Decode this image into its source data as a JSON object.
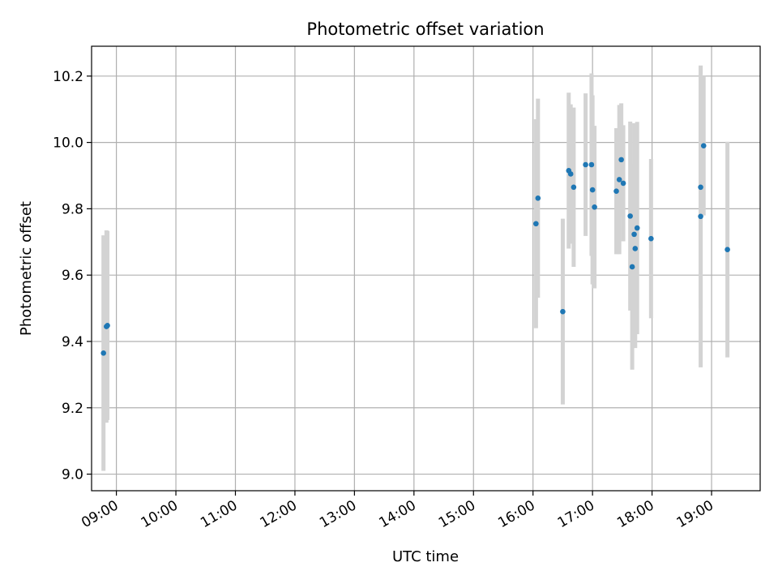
{
  "chart_data": {
    "type": "scatter",
    "title": "Photometric offset variation",
    "xlabel": "UTC time",
    "ylabel": "Photometric offset",
    "x_is_time": true,
    "xlim": [
      "08:35",
      "19:49"
    ],
    "ylim": [
      8.95,
      10.29
    ],
    "x_ticks": [
      "09:00",
      "10:00",
      "11:00",
      "12:00",
      "13:00",
      "14:00",
      "15:00",
      "16:00",
      "17:00",
      "18:00",
      "19:00"
    ],
    "y_ticks": [
      9.0,
      9.2,
      9.4,
      9.6,
      9.8,
      10.0,
      10.2
    ],
    "y_tick_labels": [
      "9.0",
      "9.2",
      "9.4",
      "9.6",
      "9.8",
      "10.0",
      "10.2"
    ],
    "grid": true,
    "colors": {
      "points": "#1f77b4",
      "error_bars": "#d3d3d3",
      "grid": "#b0b0b0"
    },
    "series": [
      {
        "points": [
          {
            "x": "08:47",
            "y": 9.365,
            "err": 0.355
          },
          {
            "x": "08:50",
            "y": 9.445,
            "err": 0.29
          },
          {
            "x": "08:51",
            "y": 9.448,
            "err": 0.285
          },
          {
            "x": "16:03",
            "y": 9.755,
            "err": 0.315
          },
          {
            "x": "16:05",
            "y": 9.832,
            "err": 0.3
          },
          {
            "x": "16:30",
            "y": 9.49,
            "err": 0.28
          },
          {
            "x": "16:36",
            "y": 9.915,
            "err": 0.235
          },
          {
            "x": "16:38",
            "y": 9.905,
            "err": 0.21
          },
          {
            "x": "16:41",
            "y": 9.865,
            "err": 0.24
          },
          {
            "x": "16:53",
            "y": 9.933,
            "err": 0.215
          },
          {
            "x": "16:59",
            "y": 9.933,
            "err": 0.275
          },
          {
            "x": "17:00",
            "y": 9.857,
            "err": 0.285
          },
          {
            "x": "17:02",
            "y": 9.805,
            "err": 0.245
          },
          {
            "x": "17:24",
            "y": 9.853,
            "err": 0.19
          },
          {
            "x": "17:27",
            "y": 9.888,
            "err": 0.225
          },
          {
            "x": "17:29",
            "y": 9.948,
            "err": 0.17
          },
          {
            "x": "17:31",
            "y": 9.877,
            "err": 0.175
          },
          {
            "x": "17:38",
            "y": 9.778,
            "err": 0.285
          },
          {
            "x": "17:40",
            "y": 9.625,
            "err": 0.31
          },
          {
            "x": "17:42",
            "y": 9.723,
            "err": 0.335
          },
          {
            "x": "17:43",
            "y": 9.68,
            "err": 0.3
          },
          {
            "x": "17:45",
            "y": 9.742,
            "err": 0.32
          },
          {
            "x": "17:59",
            "y": 9.71,
            "err": 0.24
          },
          {
            "x": "18:49",
            "y": 9.865,
            "err": 0.365
          },
          {
            "x": "18:49",
            "y": 9.777,
            "err": 0.455
          },
          {
            "x": "18:52",
            "y": 9.99,
            "err": 0.21
          },
          {
            "x": "19:16",
            "y": 9.677,
            "err": 0.325
          }
        ]
      }
    ]
  }
}
